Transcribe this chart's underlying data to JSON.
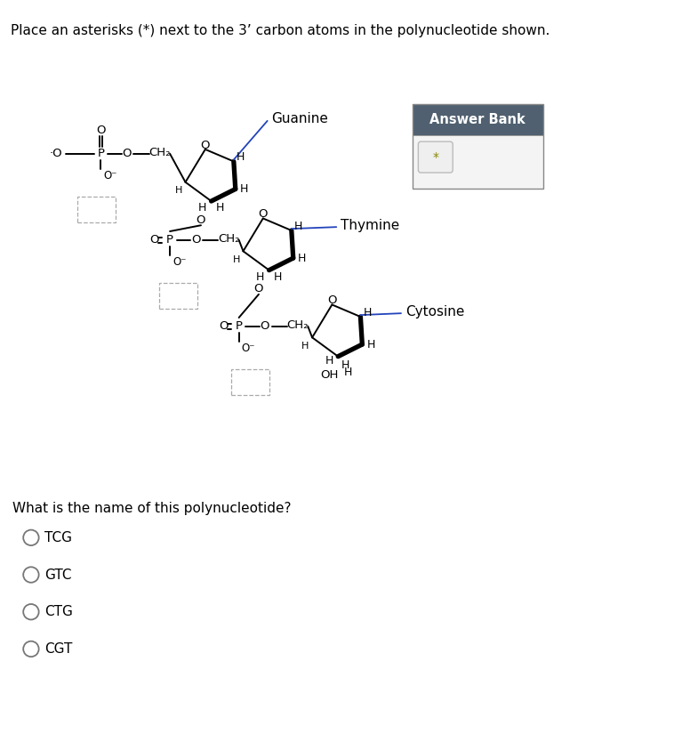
{
  "title": "Place an asterisks (*) next to the 3’ carbon atoms in the polynucleotide shown.",
  "title_fontsize": 11,
  "background_color": "#ffffff",
  "answer_bank_header": "Answer Bank",
  "answer_bank_header_bg": "#506070",
  "answer_bank_header_color": "#ffffff",
  "answer_bank_item": "*",
  "question2": "What is the name of this polynucleotide?",
  "question2_fontsize": 11,
  "radio_options": [
    "TCG",
    "GTC",
    "CTG",
    "CGT"
  ],
  "radio_fontsize": 11,
  "nucleotide_labels": [
    "Guanine",
    "Thymine",
    "Cytosine"
  ],
  "label_fontsize": 11,
  "bond_lw": 1.4,
  "bold_lw": 3.8,
  "blue_color": "#2244bb",
  "dbox_color": "#aaaaaa"
}
